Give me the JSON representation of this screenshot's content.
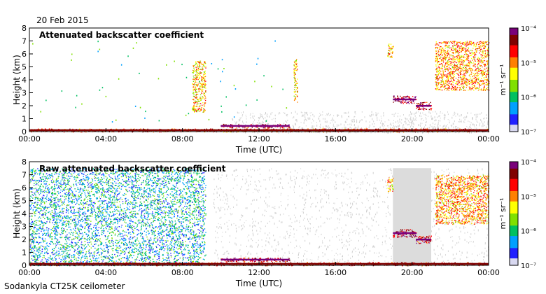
{
  "date": "20 Feb 2015",
  "footer": "Sodankyla CT25K ceilometer",
  "colors": {
    "colormap": [
      "#d8d8f0",
      "#2020ff",
      "#00a0ff",
      "#00c060",
      "#80e000",
      "#ffff00",
      "#ff8000",
      "#ff0000",
      "#800000",
      "#7a007a"
    ],
    "background_gray": "#d0d0d0",
    "axis": "#000000"
  },
  "chart_data": [
    {
      "type": "heatmap",
      "title": "Attenuated backscatter coefficient",
      "xlabel": "Time (UTC)",
      "ylabel": "Height (km)",
      "xlim": [
        "00:00",
        "00:00"
      ],
      "ylim": [
        0,
        8
      ],
      "x_ticks": [
        "00:00",
        "04:00",
        "08:00",
        "12:00",
        "16:00",
        "20:00",
        "00:00"
      ],
      "y_ticks": [
        "0",
        "1",
        "2",
        "3",
        "4",
        "5",
        "6",
        "7",
        "8"
      ],
      "colorbar": {
        "label": "m⁻¹ sr⁻¹",
        "scale": "log",
        "range": [
          1e-07,
          0.0001
        ],
        "tick_labels": [
          "10⁻⁴",
          "10⁻⁵",
          "10⁻⁶",
          "10⁻⁷"
        ]
      },
      "features": [
        {
          "name": "surface layer",
          "t": [
            0,
            24
          ],
          "h": [
            0,
            0.25
          ],
          "level": 0.75
        },
        {
          "name": "low cloud",
          "t": [
            10,
            13.6
          ],
          "h": [
            0.3,
            0.6
          ],
          "level": 0.85
        },
        {
          "name": "plume",
          "t": [
            8.5,
            9.2
          ],
          "h": [
            1.5,
            5.5
          ],
          "level": 0.6
        },
        {
          "name": "plume",
          "t": [
            13.8,
            14.0
          ],
          "h": [
            2.2,
            5.6
          ],
          "level": 0.6
        },
        {
          "name": "cloud",
          "t": [
            19.0,
            20.2
          ],
          "h": [
            2.2,
            2.8
          ],
          "level": 0.9
        },
        {
          "name": "cloud",
          "t": [
            20.2,
            21.0
          ],
          "h": [
            1.7,
            2.3
          ],
          "level": 0.85
        },
        {
          "name": "cloud",
          "t": [
            18.7,
            19.0
          ],
          "h": [
            5.7,
            6.8
          ],
          "level": 0.6
        },
        {
          "name": "cloud",
          "t": [
            21.2,
            24
          ],
          "h": [
            3.2,
            7.0
          ],
          "level": 0.65
        }
      ]
    },
    {
      "type": "heatmap",
      "title": "Raw attenuated backscatter coefficient",
      "xlabel": "Time (UTC)",
      "ylabel": "Height (km)",
      "xlim": [
        "00:00",
        "00:00"
      ],
      "ylim": [
        0,
        8
      ],
      "x_ticks": [
        "00:00",
        "04:00",
        "08:00",
        "12:00",
        "16:00",
        "20:00",
        "00:00"
      ],
      "y_ticks": [
        "0",
        "1",
        "2",
        "3",
        "4",
        "5",
        "6",
        "7",
        "8"
      ],
      "colorbar": {
        "label": "m⁻¹ sr⁻¹",
        "scale": "log",
        "range": [
          1e-07,
          0.0001
        ],
        "tick_labels": [
          "10⁻⁴",
          "10⁻⁵",
          "10⁻⁶",
          "10⁻⁷"
        ]
      },
      "features": [
        {
          "name": "noise field",
          "t": [
            0,
            9.2
          ],
          "h": [
            0,
            7.5
          ],
          "level": 0.25
        },
        {
          "name": "surface layer",
          "t": [
            0,
            24
          ],
          "h": [
            0,
            0.25
          ],
          "level": 0.8
        },
        {
          "name": "low cloud",
          "t": [
            10,
            13.6
          ],
          "h": [
            0.3,
            0.6
          ],
          "level": 0.85
        },
        {
          "name": "cloud",
          "t": [
            19.0,
            20.2
          ],
          "h": [
            2.2,
            2.8
          ],
          "level": 0.9
        },
        {
          "name": "cloud",
          "t": [
            20.2,
            21.0
          ],
          "h": [
            1.7,
            2.3
          ],
          "level": 0.85
        },
        {
          "name": "cloud",
          "t": [
            18.7,
            19.0
          ],
          "h": [
            5.7,
            6.8
          ],
          "level": 0.6
        },
        {
          "name": "cloud",
          "t": [
            21.2,
            24
          ],
          "h": [
            3.2,
            7.0
          ],
          "level": 0.65
        }
      ]
    }
  ]
}
